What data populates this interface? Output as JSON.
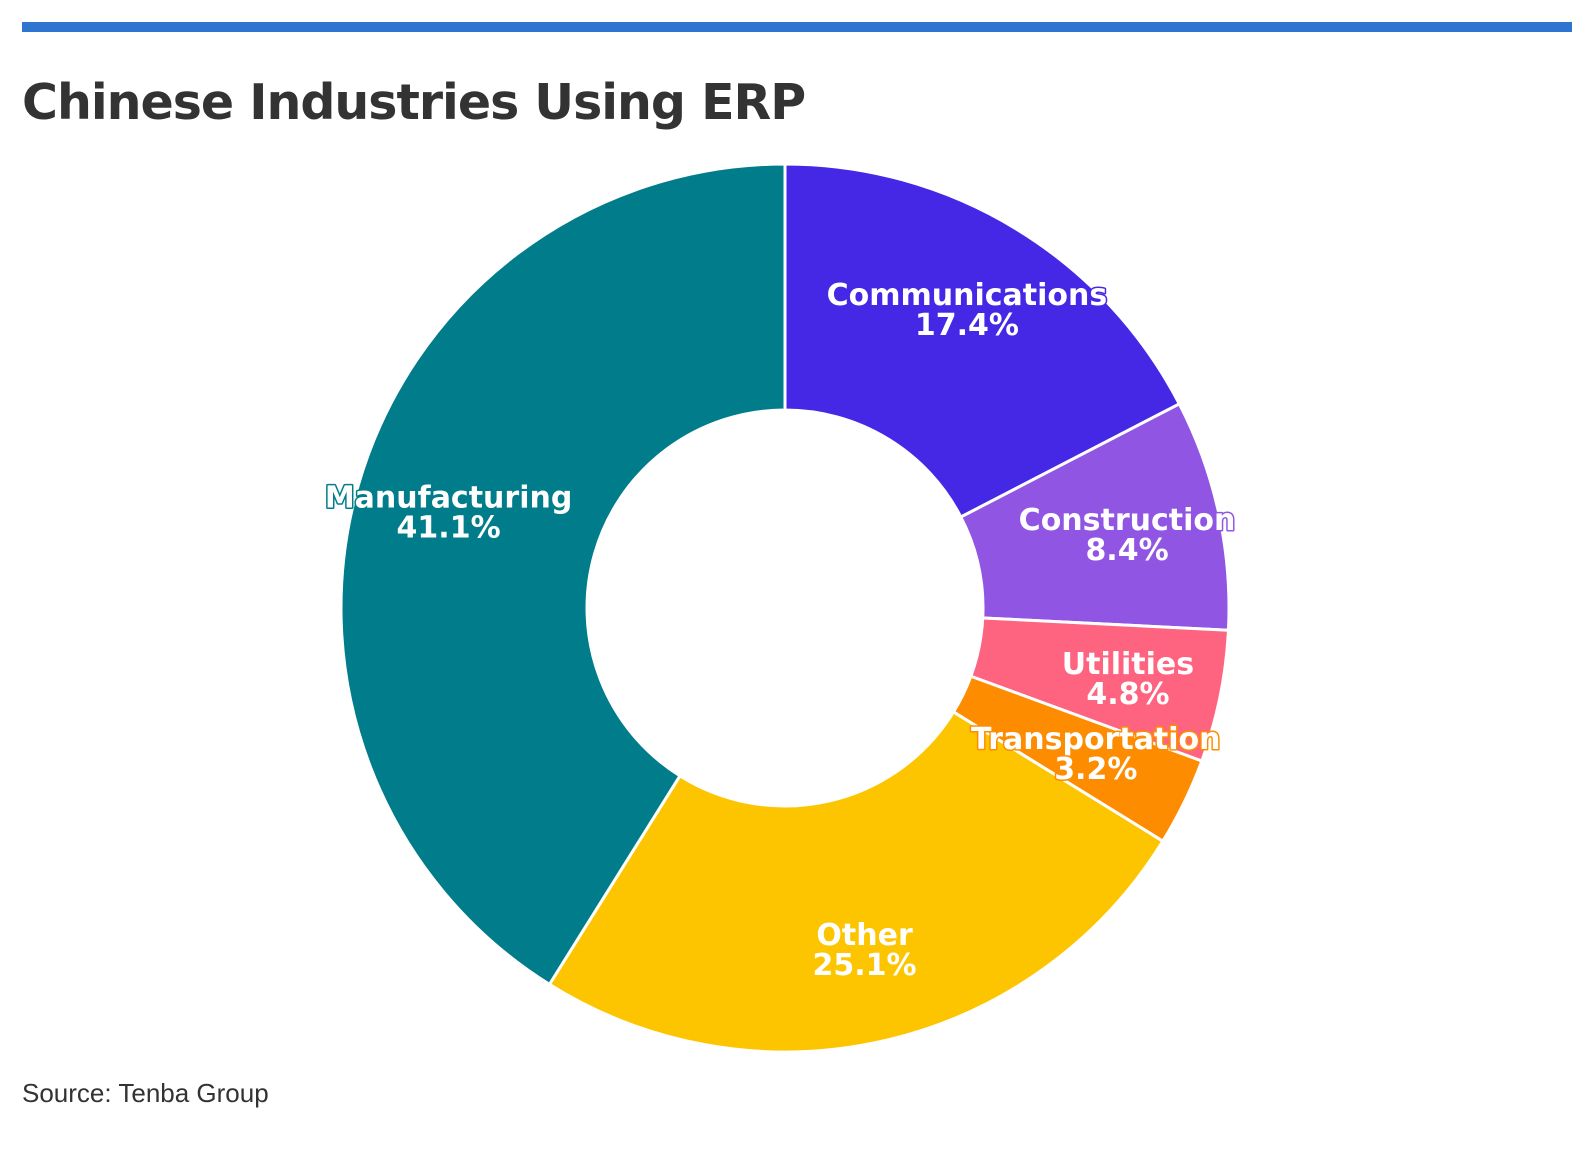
{
  "header": {
    "accent_color": "#2f74d0"
  },
  "chart_data": {
    "type": "pie",
    "style": "donut",
    "title": "Chinese Industries Using ERP",
    "categories": [
      "Communications",
      "Construction",
      "Utilities",
      "Transportation",
      "Other",
      "Manufacturing"
    ],
    "values": [
      17.4,
      8.4,
      4.8,
      3.2,
      25.1,
      41.1
    ],
    "value_labels": [
      "17.4%",
      "8.4%",
      "4.8%",
      "3.2%",
      "25.1%",
      "41.1%"
    ],
    "unit": "%",
    "colors": [
      "#4527e6",
      "#9155e3",
      "#fe6380",
      "#fe8c00",
      "#fdc500",
      "#007c8b"
    ],
    "legend": "none",
    "labels_on_slices": true
  },
  "footer": {
    "source": "Source: Tenba Group"
  }
}
